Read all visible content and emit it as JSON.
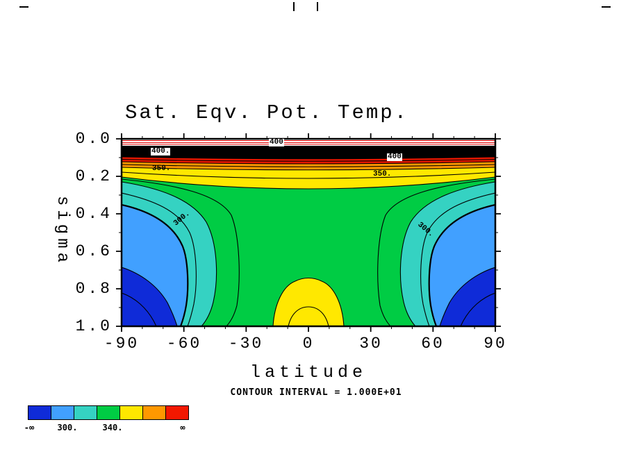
{
  "figure": {
    "title": "Sat. Eqv. Pot. Temp.",
    "x_axis": {
      "label": "latitude",
      "ticks": [
        "-90",
        "-60",
        "-30",
        "0",
        "30",
        "60",
        "90"
      ]
    },
    "y_axis": {
      "label": "sigma",
      "ticks": [
        "0.0",
        "0.2",
        "0.4",
        "0.6",
        "0.8",
        "1.0"
      ]
    },
    "footnote": "CONTOUR INTERVAL = 1.000E+01"
  },
  "contour_labels": [
    "400",
    "400.",
    "400",
    "350.",
    "350.",
    "300.",
    "300."
  ],
  "colors": {
    "dark_blue": "#0f2bd8",
    "light_blue": "#41a0ff",
    "teal": "#35d2c2",
    "green": "#00cc44",
    "yellow": "#ffe800",
    "orange": "#ff9800",
    "red": "#f21800",
    "band_red": "#e81600",
    "band_black": "#000000",
    "contour_red": "#e00000",
    "white": "#ffffff"
  },
  "colorbar": {
    "labels": [
      "-∞",
      "300.",
      "340.",
      "∞"
    ],
    "colors": [
      "#0f2bd8",
      "#41a0ff",
      "#35d2c2",
      "#00cc44",
      "#ffe800",
      "#ff9800",
      "#f21800"
    ]
  },
  "chart_data": {
    "type": "heatmap",
    "subtype": "filled-contour",
    "title": "Sat. Eqv. Pot. Temp.",
    "xlabel": "latitude",
    "ylabel": "sigma",
    "x_range": [
      -90,
      90
    ],
    "y_range": [
      0.0,
      1.0
    ],
    "y_increases_downward": true,
    "contour_interval": 10,
    "labeled_contours": [
      300,
      350,
      400
    ],
    "colorbar_labels": [
      "-inf",
      "300.",
      "340.",
      "inf"
    ],
    "colorbar_colors": [
      "#0f2bd8",
      "#41a0ff",
      "#35d2c2",
      "#00cc44",
      "#ffe800",
      "#ff9800",
      "#f21800"
    ],
    "latitudes": [
      -90,
      -60,
      -30,
      0,
      30,
      60,
      90
    ],
    "sigma_levels": [
      0.0,
      0.1,
      0.2,
      0.3,
      0.4,
      0.5,
      0.6,
      0.7,
      0.8,
      0.9,
      1.0
    ],
    "values": [
      [
        425,
        425,
        425,
        425,
        425,
        425,
        425
      ],
      [
        396,
        398,
        401,
        403,
        401,
        398,
        396
      ],
      [
        350,
        352,
        356,
        359,
        356,
        352,
        350
      ],
      [
        331,
        333,
        338,
        341,
        338,
        333,
        331
      ],
      [
        319,
        323,
        334,
        338,
        334,
        323,
        319
      ],
      [
        311,
        317,
        332,
        337,
        332,
        317,
        311
      ],
      [
        305,
        313,
        331,
        337,
        331,
        313,
        305
      ],
      [
        299,
        309,
        330,
        338,
        330,
        309,
        299
      ],
      [
        293,
        306,
        330,
        341,
        330,
        306,
        293
      ],
      [
        289,
        303,
        331,
        344,
        331,
        303,
        289
      ],
      [
        286,
        301,
        333,
        347,
        333,
        301,
        286
      ]
    ]
  }
}
